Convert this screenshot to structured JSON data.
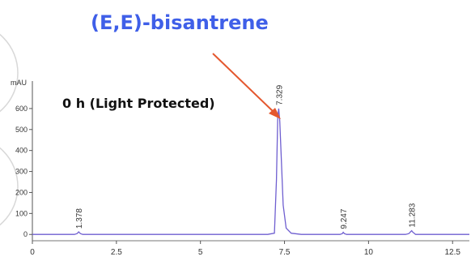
{
  "page": {
    "title": "(E,E)-bisantrene",
    "title_color": "#3f5fe8",
    "arrow_color": "#e4572e"
  },
  "chart_data": {
    "type": "line",
    "title": "0 h (Light Protected)",
    "xlabel": "",
    "ylabel": "mAU",
    "xlim": [
      0,
      13
    ],
    "ylim": [
      -30,
      700
    ],
    "x_ticks": [
      0,
      2.5,
      5,
      7.5,
      10,
      12.5
    ],
    "x_tick_labels": [
      "0",
      "2.5",
      "5",
      "7.5",
      "10",
      "12.5"
    ],
    "y_ticks": [
      0,
      100,
      200,
      300,
      400,
      500,
      600
    ],
    "y_tick_labels": [
      "0",
      "100",
      "200",
      "300",
      "400",
      "500",
      "600"
    ],
    "grid": false,
    "series": [
      {
        "color": "#6f5fd0",
        "x": [
          0,
          1.25,
          1.33,
          1.378,
          1.43,
          1.5,
          7.0,
          7.2,
          7.26,
          7.3,
          7.329,
          7.36,
          7.4,
          7.46,
          7.55,
          7.7,
          8.0,
          9.15,
          9.22,
          9.247,
          9.28,
          9.35,
          11.1,
          11.2,
          11.26,
          11.283,
          11.31,
          11.4,
          13
        ],
        "y": [
          0,
          0,
          4,
          12,
          4,
          0,
          0,
          6,
          260,
          560,
          600,
          540,
          380,
          140,
          30,
          6,
          0,
          0,
          4,
          10,
          4,
          0,
          0,
          4,
          14,
          18,
          12,
          0,
          0
        ]
      }
    ],
    "peak_labels": [
      {
        "x": 1.378,
        "label": "1.378",
        "height": 12
      },
      {
        "x": 7.329,
        "label": "7.329",
        "height": 600
      },
      {
        "x": 9.247,
        "label": "9.247",
        "height": 10
      },
      {
        "x": 11.283,
        "label": "11.283",
        "height": 18
      }
    ]
  }
}
